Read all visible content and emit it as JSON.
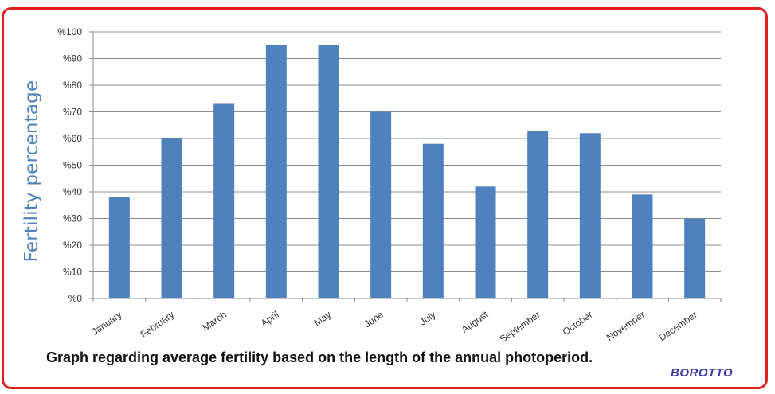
{
  "chart_data": {
    "type": "bar",
    "title": "Graph regarding average fertility based on the length of the annual photoperiod.",
    "xlabel": "",
    "ylabel": "Fertility percentage",
    "categories": [
      "January",
      "February",
      "March",
      "April",
      "May",
      "June",
      "July",
      "August",
      "September",
      "October",
      "November",
      "December"
    ],
    "values": [
      38,
      60,
      73,
      95,
      95,
      70,
      58,
      42,
      63,
      62,
      39,
      30
    ],
    "ylim": [
      0,
      100
    ],
    "yticks": [
      "%0",
      "%10",
      "%20",
      "%30",
      "%40",
      "%50",
      "%60",
      "%70",
      "%80",
      "%90",
      "%100"
    ],
    "grid": true,
    "bar_color": "#4f81bd"
  },
  "credit": "BOROTTO",
  "colors": {
    "frame": "#e0201c",
    "ylabel": "#4f81bd",
    "credit": "#3a3aa8"
  }
}
